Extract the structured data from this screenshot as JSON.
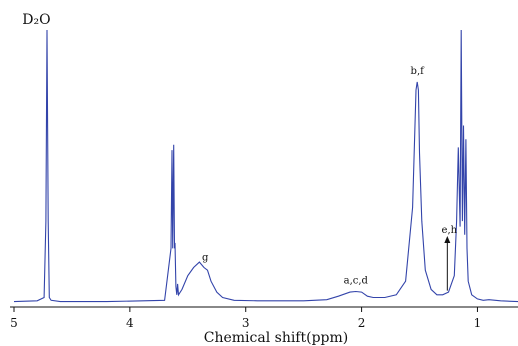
{
  "chart_data": {
    "type": "line",
    "title": "",
    "xlabel": "Chemical shift(ppm)",
    "ylabel": "",
    "xlim": [
      5.0,
      0.65
    ],
    "ylim": [
      0,
      100
    ],
    "x_reversed": true,
    "grid": false,
    "x_ticks": [
      "5",
      "4",
      "3",
      "2",
      "1"
    ],
    "line_color": "#3344aa",
    "series": [
      {
        "x": [
          5.0,
          4.8,
          4.74,
          4.725,
          4.715,
          4.705,
          4.695,
          4.68,
          4.6,
          4.2,
          3.7,
          3.645,
          3.636,
          3.63,
          3.622,
          3.615,
          3.61,
          3.603,
          3.595,
          3.588,
          3.58,
          3.55,
          3.5,
          3.45,
          3.4,
          3.36,
          3.33,
          3.3,
          3.25,
          3.2,
          3.1,
          2.9,
          2.7,
          2.5,
          2.3,
          2.2,
          2.1,
          2.05,
          2.0,
          1.95,
          1.9,
          1.8,
          1.7,
          1.62,
          1.56,
          1.53,
          1.52,
          1.51,
          1.5,
          1.48,
          1.45,
          1.4,
          1.35,
          1.3,
          1.25,
          1.2,
          1.18,
          1.165,
          1.15,
          1.14,
          1.13,
          1.12,
          1.11,
          1.1,
          1.09,
          1.08,
          1.05,
          1.0,
          0.95,
          0.9,
          0.8,
          0.65
        ],
        "y": [
          0.5,
          0.8,
          2,
          30,
          100,
          30,
          2,
          1,
          0.5,
          0.5,
          1,
          20,
          56,
          20,
          58,
          20,
          22,
          6,
          3,
          7,
          3,
          5,
          10,
          13,
          15,
          13,
          12,
          8,
          4,
          2,
          1,
          0.8,
          0.8,
          0.8,
          1.2,
          2.5,
          4,
          4.2,
          4,
          2.5,
          2,
          2,
          3,
          8,
          35,
          78,
          81,
          78,
          55,
          30,
          12,
          5,
          3,
          3,
          4,
          10,
          30,
          57,
          28,
          100,
          30,
          65,
          25,
          60,
          20,
          8,
          3,
          1.5,
          1,
          1.2,
          0.8,
          0.5
        ]
      }
    ],
    "annotations": [
      {
        "text": "D₂O",
        "x": 4.72
      },
      {
        "text": "g",
        "x": 3.35
      },
      {
        "text": "a,c,d",
        "x": 2.05
      },
      {
        "text": "b,f",
        "x": 1.52
      },
      {
        "text": "e,h",
        "x": 1.26,
        "arrow": true
      }
    ]
  }
}
